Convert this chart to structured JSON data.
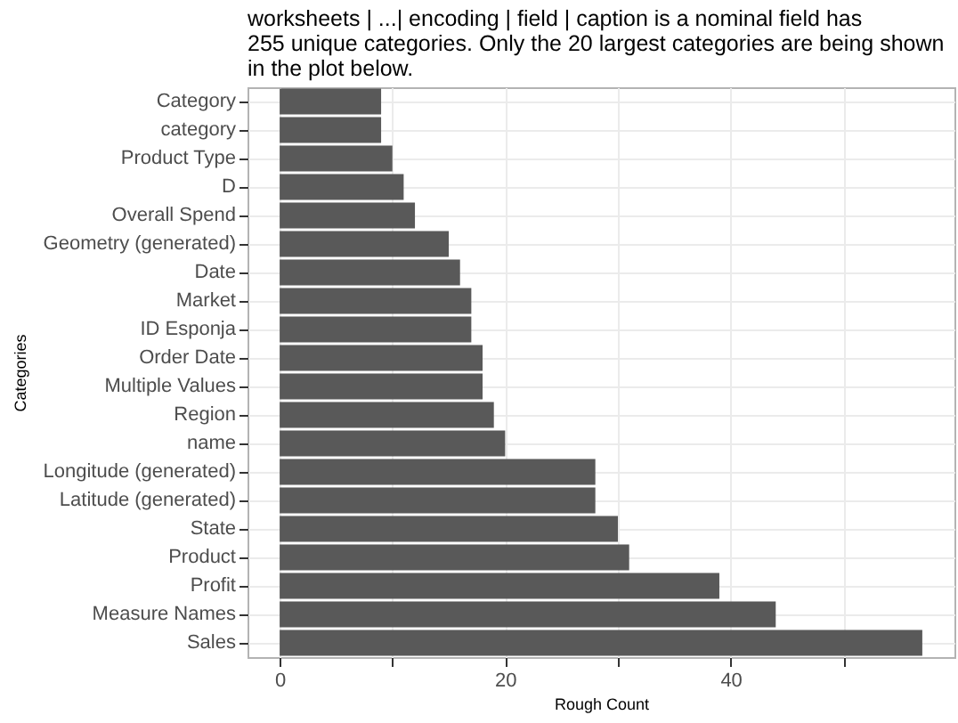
{
  "chart_data": {
    "type": "bar",
    "orientation": "horizontal",
    "title": "worksheets | ...| encoding | field | caption is a nominal field has 255 unique categories. Only the 20 largest categories are being shown in the plot below.",
    "xlabel": "Rough Count",
    "ylabel": "Categories",
    "categories": [
      "Category",
      "category",
      "Product Type",
      "D",
      "Overall Spend",
      "Geometry (generated)",
      "Date",
      "Market",
      "ID Esponja",
      "Order Date",
      "Multiple Values",
      "Region",
      "name",
      "Longitude (generated)",
      "Latitude (generated)",
      "State",
      "Product",
      "Profit",
      "Measure Names",
      "Sales"
    ],
    "values": [
      9,
      9,
      10,
      11,
      12,
      15,
      16,
      17,
      17,
      18,
      18,
      19,
      20,
      28,
      28,
      30,
      31,
      39,
      44,
      57
    ],
    "color": "#595959",
    "xlim": [
      -2.85,
      59.85
    ],
    "xticks": [
      0,
      {
        "value": 10,
        "label": null
      },
      20,
      {
        "value": 30,
        "label": null
      },
      40,
      {
        "value": 50,
        "label": null
      }
    ],
    "grid": true
  }
}
